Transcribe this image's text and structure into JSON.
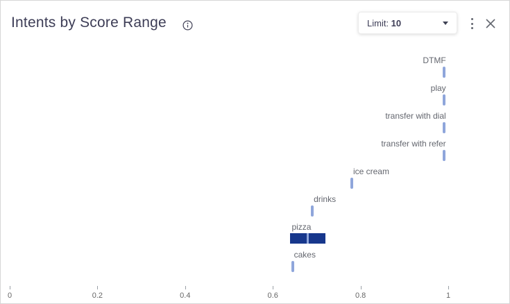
{
  "header": {
    "title": "Intents by Score Range",
    "limit_dropdown": {
      "label": "Limit: ",
      "value": "10"
    },
    "icons": {
      "info": "info-circle-icon",
      "caret": "caret-down-icon",
      "menu": "kebab-menu-icon",
      "close": "close-x-icon"
    }
  },
  "colors": {
    "title_text": "#3d3d56",
    "label_text": "#63666e",
    "axis_text": "#666666",
    "marker": "#8fa6db",
    "box_fill": "#17378c",
    "box_median": "#8fa6db",
    "icon_gray": "#62666f"
  },
  "chart_data": {
    "type": "box-range",
    "title": "Intents by Score Range",
    "orientation": "horizontal-axis-scores",
    "xlim": [
      0,
      1.04
    ],
    "x_tick_labels": [
      "0",
      "0.2",
      "0.4",
      "0.6",
      "0.8",
      "1"
    ],
    "x_tick_values": [
      0,
      0.2,
      0.4,
      0.6,
      0.8,
      1
    ],
    "grid": false,
    "legend": false,
    "items": [
      {
        "label": "DTMF",
        "min": 0.99,
        "median": 0.99,
        "max": 0.99
      },
      {
        "label": "play",
        "min": 0.99,
        "median": 0.99,
        "max": 0.99
      },
      {
        "label": "transfer with dial",
        "min": 0.99,
        "median": 0.99,
        "max": 0.99
      },
      {
        "label": "transfer with refer",
        "min": 0.99,
        "median": 0.99,
        "max": 0.99
      },
      {
        "label": "ice cream",
        "min": 0.78,
        "median": 0.78,
        "max": 0.78
      },
      {
        "label": "drinks",
        "min": 0.69,
        "median": 0.69,
        "max": 0.69
      },
      {
        "label": "pizza",
        "min": 0.64,
        "median": 0.68,
        "max": 0.72
      },
      {
        "label": "cakes",
        "min": 0.645,
        "median": 0.645,
        "max": 0.645
      }
    ]
  }
}
